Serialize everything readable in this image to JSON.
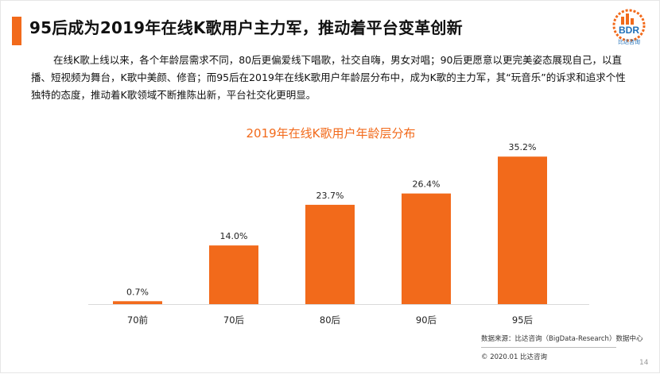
{
  "header": {
    "title": "95后成为2019年在线K歌用户主力军，推动着平台变革创新",
    "logo_text": "BDR",
    "logo_subtext": "比达咨询"
  },
  "body": {
    "paragraph": "在线K歌上线以来，各个年龄层需求不同，80后更偏爱线下唱歌，社交自嗨，男女对唱；90后更愿意以更完美姿态展现自己，以直播、短视频为舞台，K歌中美颜、修音；而95后在2019年在线K歌用户年龄层分布中，成为K歌的主力军，其“玩音乐”的诉求和追求个性独特的态度，推动着K歌领域不断推陈出新，平台社交化更明显。"
  },
  "chart_data": {
    "type": "bar",
    "title": "2019年在线K歌用户年龄层分布",
    "categories": [
      "70前",
      "70后",
      "80后",
      "90后",
      "95后"
    ],
    "values": [
      0.7,
      14.0,
      23.7,
      26.4,
      35.2
    ],
    "value_labels": [
      "0.7%",
      "14.0%",
      "23.7%",
      "26.4%",
      "35.2%"
    ],
    "unit": "%",
    "ylim": [
      0,
      40
    ],
    "grid": false,
    "bar_color": "#f26a1b"
  },
  "footer": {
    "source": "数据来源：比达咨询（BigData-Research）数据中心",
    "copyright": "© 2020.01 比达咨询",
    "page_number": "14"
  },
  "colors": {
    "accent": "#f26a1b",
    "logo_blue": "#1f6fb8"
  }
}
